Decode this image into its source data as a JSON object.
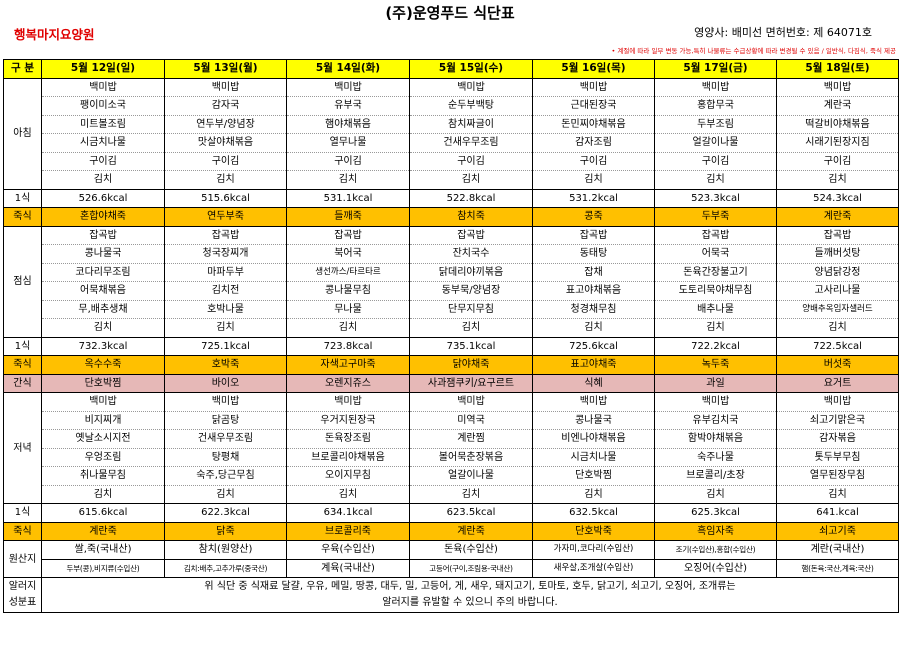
{
  "header": {
    "title": "(주)운영푸드 식단표",
    "facility": "행복마지요양원",
    "nutritionist": "영양사: 배미선 면허번호: 제 64071호",
    "note": "• 계절에 따라 일부 변동 가능,특히 나물류는 수급상황에 따라 변경될 수 있음 / 일반식, 다짐식, 죽식 제공"
  },
  "columns": {
    "label": "구 분",
    "days": [
      "5월 12일(일)",
      "5월 13일(월)",
      "5월 14일(화)",
      "5월 15일(수)",
      "5월 16일(목)",
      "5월 17일(금)",
      "5월 18일(토)"
    ]
  },
  "breakfast": {
    "label": "아침",
    "rows": [
      [
        "백미밥",
        "백미밥",
        "백미밥",
        "백미밥",
        "백미밥",
        "백미밥",
        "백미밥"
      ],
      [
        "팽이미소국",
        "감자국",
        "유부국",
        "순두부백탕",
        "근대된장국",
        "홍합무국",
        "계란국"
      ],
      [
        "미트볼조림",
        "연두부/양념장",
        "햄야채볶음",
        "참치짜글이",
        "돈민찌야채볶음",
        "두부조림",
        "떡갈비야채볶음"
      ],
      [
        "시금치나물",
        "맛살야채볶음",
        "열무나물",
        "건새우무조림",
        "감자조림",
        "얼갈이나물",
        "시래기된장지짐"
      ],
      [
        "구이김",
        "구이김",
        "구이김",
        "구이김",
        "구이김",
        "구이김",
        "구이김"
      ],
      [
        "김치",
        "김치",
        "김치",
        "김치",
        "김치",
        "김치",
        "김치"
      ]
    ],
    "kcal_label": "1식",
    "kcal": [
      "526.6kcal",
      "515.6kcal",
      "531.1kcal",
      "522.8kcal",
      "531.2kcal",
      "523.3kcal",
      "524.3kcal"
    ],
    "porridge_label": "죽식",
    "porridge": [
      "혼합야채죽",
      "연두부죽",
      "들깨죽",
      "참치죽",
      "콩죽",
      "두부죽",
      "계란죽"
    ]
  },
  "lunch": {
    "label": "점심",
    "rows": [
      [
        "잡곡밥",
        "잡곡밥",
        "잡곡밥",
        "잡곡밥",
        "잡곡밥",
        "잡곡밥",
        "잡곡밥"
      ],
      [
        "콩나물국",
        "청국장찌개",
        "북어국",
        "잔치국수",
        "동태탕",
        "어묵국",
        "들깨버섯탕"
      ],
      [
        "코다리무조림",
        "마파두부",
        "생선까스/타르타르",
        "닭데리야끼볶음",
        "잡채",
        "돈육간장불고기",
        "양념닭강정"
      ],
      [
        "어묵채볶음",
        "김치전",
        "콩나물무침",
        "동부묵/양념장",
        "표고야채볶음",
        "도토리묵야채무침",
        "고사리나물"
      ],
      [
        "무,배추생채",
        "호박나물",
        "무나물",
        "단무지무침",
        "청경채무침",
        "배추나물",
        "양배추옥임자샐러드"
      ],
      [
        "김치",
        "김치",
        "김치",
        "김치",
        "김치",
        "김치",
        "김치"
      ]
    ],
    "kcal_label": "1식",
    "kcal": [
      "732.3kcal",
      "725.1kcal",
      "723.8kcal",
      "735.1kcal",
      "725.6kcal",
      "722.2kcal",
      "722.5kcal"
    ],
    "porridge_label": "죽식",
    "porridge": [
      "옥수수죽",
      "호박죽",
      "자색고구마죽",
      "닭야채죽",
      "표고야채죽",
      "녹두죽",
      "버섯죽"
    ],
    "snack_label": "간식",
    "snack": [
      "단호박찜",
      "바이오",
      "오렌지쥬스",
      "사과잼쿠키/요구르트",
      "식혜",
      "과일",
      "요거트"
    ]
  },
  "dinner": {
    "label": "저녁",
    "rows": [
      [
        "백미밥",
        "백미밥",
        "백미밥",
        "백미밥",
        "백미밥",
        "백미밥",
        "백미밥"
      ],
      [
        "비지찌개",
        "닭곰탕",
        "우거지된장국",
        "미역국",
        "콩나물국",
        "유부김치국",
        "쇠고기맑은국"
      ],
      [
        "옛날소시지전",
        "건새우무조림",
        "돈육장조림",
        "계란찜",
        "비엔나야채볶음",
        "함박야채볶음",
        "감자볶음"
      ],
      [
        "우엉조림",
        "탕평채",
        "브로콜리야채볶음",
        "볼어묵춘장볶음",
        "시금치나물",
        "숙주나물",
        "톳두부무침"
      ],
      [
        "취나물무침",
        "숙주,당근무침",
        "오이지무침",
        "얼갈이나물",
        "단호박찜",
        "브로콜리/초장",
        "열무된장무침"
      ],
      [
        "김치",
        "김치",
        "김치",
        "김치",
        "김치",
        "김치",
        "김치"
      ]
    ],
    "kcal_label": "1식",
    "kcal": [
      "615.6kcal",
      "622.3kcal",
      "634.1kcal",
      "623.5kcal",
      "632.5kcal",
      "625.3kcal",
      "641.kcal"
    ],
    "porridge_label": "죽식",
    "porridge": [
      "계란죽",
      "닭죽",
      "브로콜리죽",
      "계란죽",
      "단호박죽",
      "흑임자죽",
      "쇠고기죽"
    ]
  },
  "origin": {
    "label": "원산지",
    "rows": [
      [
        "쌀,죽(국내산)",
        "참치(원양산)",
        "우육(수입산)",
        "돈육(수입산)",
        "가자미,코다리(수입산)",
        "조기(수입산),홍합(수입산)",
        "계란(국내산)"
      ],
      [
        "두부(콩),비지류(수입산)",
        "김치:배추,고추가루(중국산)",
        "계육(국내산)",
        "고등어(구이,조림용-국내산)",
        "새우살,조개살(수입산)",
        "오징어(수입산)",
        "햄(돈육:국산,계육:국산)"
      ]
    ]
  },
  "allergy": {
    "label_line1": "알러지",
    "label_line2": "성분표",
    "line1": "위 식단 중 식재료 달걀, 우유, 메밀, 땅콩, 대두, 밀, 고등어, 게, 새우, 돼지고기, 토마토, 호두, 닭고기, 쇠고기, 오징어, 조개류는",
    "line2": "알러지를 유발할 수 있으니 주의 바랍니다."
  }
}
